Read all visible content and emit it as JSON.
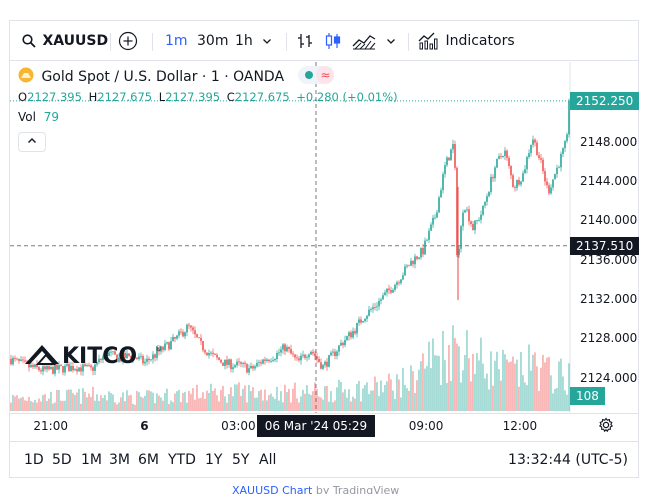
{
  "toolbar": {
    "symbol": "XAUUSD",
    "intervals": [
      "1m",
      "30m",
      "1h"
    ],
    "active_interval": "1m",
    "indicators_label": "Indicators"
  },
  "legend": {
    "title": "Gold Spot / U.S. Dollar · 1 · OANDA",
    "o_label": "O",
    "o": "2127.395",
    "h_label": "H",
    "h": "2127.675",
    "l_label": "L",
    "l": "2127.395",
    "c_label": "C",
    "c": "2127.675",
    "change": "+0.280 (+0.01%)",
    "vol_label": "Vol",
    "vol": "79",
    "collapse_icon": "chevron-up-icon"
  },
  "colors": {
    "up": "#26a69a",
    "down": "#ef5350",
    "accent": "#2962ff",
    "crosshair_tag": "#131722"
  },
  "price_tags": {
    "last": "2152.250",
    "crosshair": "2137.510",
    "volume": "108"
  },
  "crosshair_time": "06 Mar '24   05:29",
  "ranges": [
    "1D",
    "5D",
    "1M",
    "3M",
    "6M",
    "YTD",
    "1Y",
    "5Y",
    "All"
  ],
  "clock": "13:32:44 (UTC-5)",
  "watermark": "KITCO",
  "attribution": {
    "link": "XAUUSD Chart",
    "by": " by TradingView"
  },
  "chart_data": {
    "type": "candlestick",
    "title": "Gold Spot / U.S. Dollar · 1 · OANDA",
    "y_ticks": [
      2124,
      2128,
      2132,
      2136,
      2140,
      2144,
      2148
    ],
    "y_tick_labels": [
      "2124.000",
      "2128.000",
      "2132.000",
      "2136.000",
      "2140.000",
      "2144.000",
      "2148.000"
    ],
    "ylim": [
      2120.7,
      2156.2
    ],
    "x_ticks": [
      "21:00",
      "6",
      "03:00",
      "09:00",
      "12:00"
    ],
    "x_tick_hours": [
      21,
      24,
      27,
      33,
      36
    ],
    "xlim_hours": [
      19.7,
      37.6
    ],
    "crosshair": {
      "hour": 29.48,
      "price": 2137.51
    },
    "last_price": 2152.25,
    "close_path": [
      [
        19.7,
        2126.0
      ],
      [
        20.2,
        2125.3
      ],
      [
        20.8,
        2124.8
      ],
      [
        21.3,
        2125.0
      ],
      [
        21.8,
        2125.2
      ],
      [
        22.3,
        2124.9
      ],
      [
        22.8,
        2126.6
      ],
      [
        23.2,
        2126.0
      ],
      [
        23.6,
        2126.4
      ],
      [
        24.0,
        2125.6
      ],
      [
        24.5,
        2126.8
      ],
      [
        25.0,
        2128.0
      ],
      [
        25.4,
        2129.3
      ],
      [
        25.8,
        2127.4
      ],
      [
        26.2,
        2126.2
      ],
      [
        26.6,
        2125.5
      ],
      [
        27.1,
        2125.3
      ],
      [
        27.4,
        2124.9
      ],
      [
        27.8,
        2125.9
      ],
      [
        28.2,
        2126.4
      ],
      [
        28.5,
        2127.2
      ],
      [
        28.9,
        2125.6
      ],
      [
        29.3,
        2127.0
      ],
      [
        29.7,
        2125.2
      ],
      [
        30.0,
        2126.3
      ],
      [
        30.3,
        2127.6
      ],
      [
        30.7,
        2128.9
      ],
      [
        31.0,
        2130.3
      ],
      [
        31.4,
        2131.5
      ],
      [
        31.8,
        2132.9
      ],
      [
        32.1,
        2134.0
      ],
      [
        32.5,
        2135.8
      ],
      [
        32.9,
        2137.0
      ],
      [
        33.3,
        2140.6
      ],
      [
        33.6,
        2145.5
      ],
      [
        33.9,
        2148.0
      ],
      [
        34.0,
        2135.5
      ],
      [
        34.2,
        2142.0
      ],
      [
        34.5,
        2139.3
      ],
      [
        34.8,
        2141.0
      ],
      [
        35.2,
        2145.5
      ],
      [
        35.5,
        2147.3
      ],
      [
        35.8,
        2143.5
      ],
      [
        36.1,
        2144.8
      ],
      [
        36.4,
        2148.6
      ],
      [
        36.6,
        2146.7
      ],
      [
        36.9,
        2143.0
      ],
      [
        37.2,
        2145.5
      ],
      [
        37.5,
        2148.2
      ],
      [
        37.6,
        2152.25
      ]
    ],
    "volume_path": [
      [
        19.7,
        40
      ],
      [
        21.0,
        45
      ],
      [
        22.5,
        50
      ],
      [
        24.0,
        42
      ],
      [
        25.5,
        55
      ],
      [
        27.0,
        60
      ],
      [
        28.5,
        58
      ],
      [
        30.0,
        62
      ],
      [
        31.5,
        75
      ],
      [
        32.5,
        95
      ],
      [
        33.0,
        160
      ],
      [
        33.5,
        180
      ],
      [
        34.0,
        210
      ],
      [
        34.5,
        170
      ],
      [
        35.0,
        140
      ],
      [
        35.5,
        130
      ],
      [
        36.0,
        120
      ],
      [
        36.5,
        150
      ],
      [
        37.0,
        110
      ],
      [
        37.6,
        108
      ]
    ],
    "volume_max": 230
  }
}
